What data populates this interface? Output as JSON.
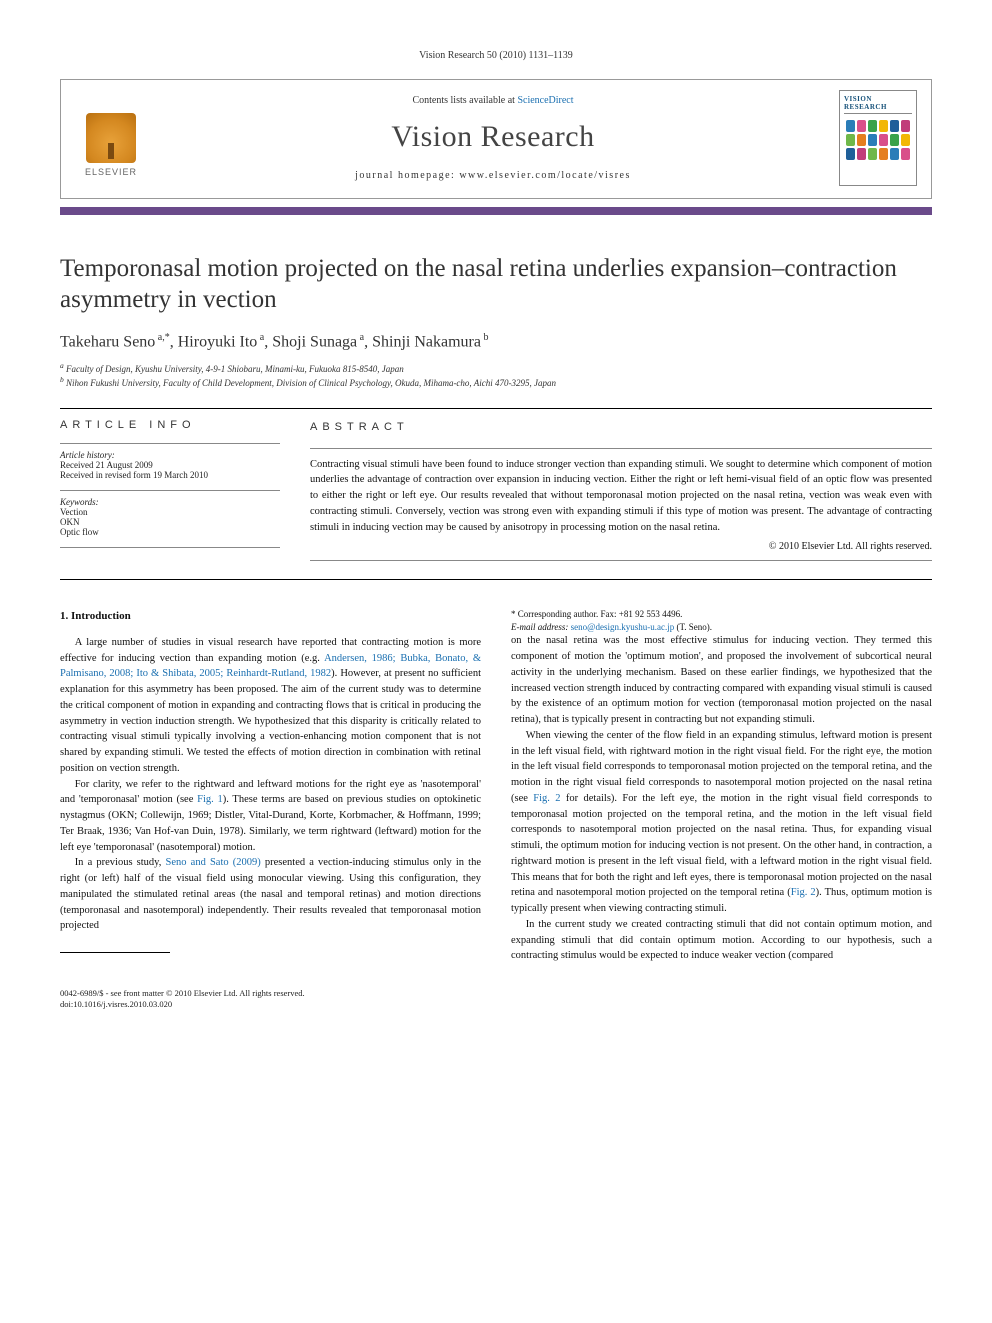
{
  "running_head": "Vision Research 50 (2010) 1131–1139",
  "header": {
    "contents_prefix": "Contents lists available at ",
    "contents_link": "ScienceDirect",
    "journal_name": "Vision Research",
    "homepage_prefix": "journal homepage: ",
    "homepage_url": "www.elsevier.com/locate/visres",
    "publisher_label": "ELSEVIER",
    "cover_title_line1": "VISION",
    "cover_title_line2": "RESEARCH",
    "cover_colors": [
      "#2a7db8",
      "#d94f8a",
      "#3aa24a",
      "#f2b705",
      "#1f5f99",
      "#c13c7a",
      "#6fb84a",
      "#e57e1f",
      "#2a7db8",
      "#d94f8a",
      "#3aa24a",
      "#f2b705",
      "#1f5f99",
      "#c13c7a",
      "#6fb84a",
      "#e57e1f",
      "#2a7db8",
      "#d94f8a"
    ]
  },
  "accent_color": "#6a4a8a",
  "title": "Temporonasal motion projected on the nasal retina underlies expansion–contraction asymmetry in vection",
  "authors_html": "Takeharu Seno<sup> a,*</sup>, Hiroyuki Ito<sup> a</sup>, Shoji Sunaga<sup> a</sup>, Shinji Nakamura<sup> b</sup>",
  "affiliations": [
    "a Faculty of Design, Kyushu University, 4-9-1 Shiobaru, Minami-ku, Fukuoka 815-8540, Japan",
    "b Nihon Fukushi University, Faculty of Child Development, Division of Clinical Psychology, Okuda, Mihama-cho, Aichi 470-3295, Japan"
  ],
  "info": {
    "head": "ARTICLE INFO",
    "history_label": "Article history:",
    "received": "Received 21 August 2009",
    "revised": "Received in revised form 19 March 2010",
    "keywords_label": "Keywords:",
    "keywords": [
      "Vection",
      "OKN",
      "Optic flow"
    ]
  },
  "abstract": {
    "head": "ABSTRACT",
    "text": "Contracting visual stimuli have been found to induce stronger vection than expanding stimuli. We sought to determine which component of motion underlies the advantage of contraction over expansion in inducing vection. Either the right or left hemi-visual field of an optic flow was presented to either the right or left eye. Our results revealed that without temporonasal motion projected on the nasal retina, vection was weak even with contracting stimuli. Conversely, vection was strong even with expanding stimuli if this type of motion was present. The advantage of contracting stimuli in inducing vection may be caused by anisotropy in processing motion on the nasal retina.",
    "copyright": "© 2010 Elsevier Ltd. All rights reserved."
  },
  "section1": {
    "heading": "1. Introduction",
    "p1_pre": "A large number of studies in visual research have reported that contracting motion is more effective for inducing vection than expanding motion (e.g. ",
    "p1_links": "Andersen, 1986; Bubka, Bonato, & Palmisano, 2008; Ito & Shibata, 2005; Reinhardt-Rutland, 1982",
    "p1_post": "). However, at present no sufficient explanation for this asymmetry has been proposed. The aim of the current study was to determine the critical component of motion in expanding and contracting flows that is critical in producing the asymmetry in vection induction strength. We hypothesized that this disparity is critically related to contracting visual stimuli typically involving a vection-enhancing motion component that is not shared by expanding stimuli. We tested the effects of motion direction in combination with retinal position on vection strength.",
    "p2_pre": "For clarity, we refer to the rightward and leftward motions for the right eye as 'nasotemporal' and 'temporonasal' motion (see ",
    "p2_link1": "Fig. 1",
    "p2_post": "). These terms are based on previous studies on optokinetic nystagmus (OKN; Collewijn, 1969; Distler, Vital-Durand, Korte, Korbmacher, & Hoffmann, 1999; Ter Braak, 1936; Van Hof-van Duin, 1978). Similarly, we term rightward (leftward) motion for the left eye 'temporonasal' (nasotemporal) motion.",
    "p3_pre": "In a previous study, ",
    "p3_link": "Seno and Sato (2009)",
    "p3_post": " presented a vection-inducing stimulus only in the right (or left) half of the visual field using monocular viewing. Using this configuration, they manipulated the stimulated retinal areas (the nasal and temporal retinas) and motion directions (temporonasal and nasotemporal) independently. Their results revealed that temporonasal motion projected",
    "p4": "on the nasal retina was the most effective stimulus for inducing vection. They termed this component of motion the 'optimum motion', and proposed the involvement of subcortical neural activity in the underlying mechanism. Based on these earlier findings, we hypothesized that the increased vection strength induced by contracting compared with expanding visual stimuli is caused by the existence of an optimum motion for vection (temporonasal motion projected on the nasal retina), that is typically present in contracting but not expanding stimuli.",
    "p5_pre": "When viewing the center of the flow field in an expanding stimulus, leftward motion is present in the left visual field, with rightward motion in the right visual field. For the right eye, the motion in the left visual field corresponds to temporonasal motion projected on the temporal retina, and the motion in the right visual field corresponds to nasotemporal motion projected on the nasal retina (see ",
    "p5_link1": "Fig. 2",
    "p5_mid": " for details). For the left eye, the motion in the right visual field corresponds to temporonasal motion projected on the temporal retina, and the motion in the left visual field corresponds to nasotemporal motion projected on the nasal retina. Thus, for expanding visual stimuli, the optimum motion for inducing vection is not present. On the other hand, in contraction, a rightward motion is present in the left visual field, with a leftward motion in the right visual field. This means that for both the right and left eyes, there is temporonasal motion projected on the nasal retina and nasotemporal motion projected on the temporal retina (",
    "p5_link2": "Fig. 2",
    "p5_post": "). Thus, optimum motion is typically present when viewing contracting stimuli.",
    "p6": "In the current study we created contracting stimuli that did not contain optimum motion, and expanding stimuli that did contain optimum motion. According to our hypothesis, such a contracting stimulus would be expected to induce weaker vection (compared"
  },
  "footnotes": {
    "corr_label": "* Corresponding author. Fax: +81 92 553 4496.",
    "email_label": "E-mail address:",
    "email": "seno@design.kyushu-u.ac.jp",
    "email_suffix": " (T. Seno)."
  },
  "footer": {
    "line1": "0042-6989/$ - see front matter © 2010 Elsevier Ltd. All rights reserved.",
    "line2": "doi:10.1016/j.visres.2010.03.020"
  }
}
